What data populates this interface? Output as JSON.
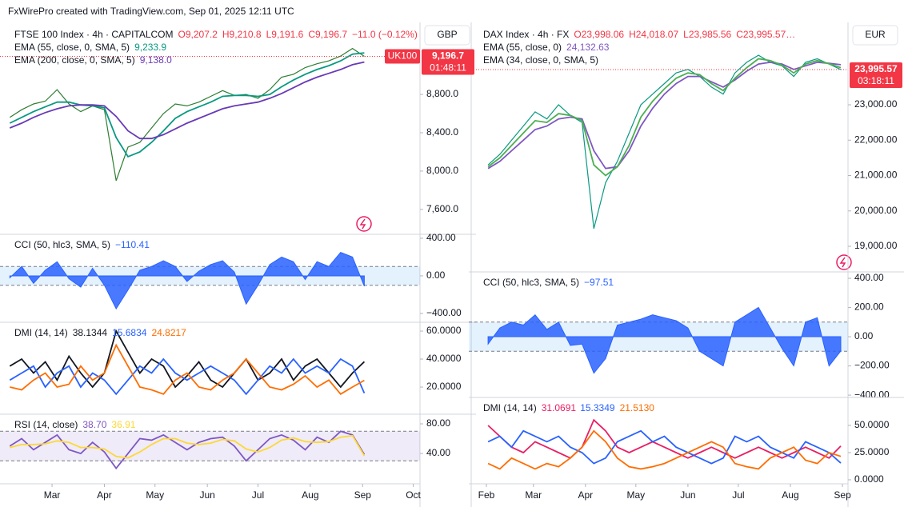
{
  "header": "FxWirePro created with TradingView.com, Sep 01, 2025 12:11 UTC",
  "chart_data": [
    {
      "currency": "GBP",
      "xlim": [
        33.9,
        278
      ],
      "xticks": [
        {
          "value": 60,
          "label": "Mar"
        },
        {
          "value": 91,
          "label": "Apr"
        },
        {
          "value": 121,
          "label": "May"
        },
        {
          "value": 152,
          "label": "Jun"
        },
        {
          "value": 182,
          "label": "Jul"
        },
        {
          "value": 213,
          "label": "Aug"
        },
        {
          "value": 244,
          "label": "Sep"
        },
        {
          "value": 274,
          "label": "Oct"
        }
      ],
      "x": [
        35,
        42,
        49,
        56,
        63,
        70,
        77,
        84,
        91,
        98,
        105,
        112,
        119,
        126,
        133,
        140,
        147,
        154,
        161,
        168,
        175,
        182,
        189,
        196,
        203,
        210,
        217,
        224,
        231,
        238,
        245
      ],
      "panes": [
        {
          "type": "line",
          "title": "FTSE 100 Index · 4h · CAPITALCOM",
          "ohlc": [
            "O9,207.2",
            "H9,210.8",
            "L9,191.6",
            "C9,196.7"
          ],
          "change": "−11.0 (−0.12%)",
          "badge": "UK100",
          "last_label": "9,196.7",
          "countdown": "01:48:11",
          "ylim": [
            7340,
            9535
          ],
          "yticks": [
            {
              "value": 8800,
              "label": "8,800.0"
            },
            {
              "value": 8400,
              "label": "8,400.0"
            },
            {
              "value": 8000,
              "label": "8,000.0"
            },
            {
              "value": 7600,
              "label": "7,600.0"
            }
          ],
          "series": [
            {
              "color": "#2e7d32",
              "values": [
                8560,
                8640,
                8700,
                8730,
                8850,
                8700,
                8620,
                8680,
                8640,
                7900,
                8250,
                8300,
                8450,
                8600,
                8700,
                8680,
                8720,
                8780,
                8840,
                8790,
                8800,
                8760,
                8850,
                8980,
                9010,
                9080,
                9120,
                9150,
                9200,
                9280,
                9196.7
              ]
            },
            {
              "name": "EMA (55, close, 0, SMA, 5)",
              "value_label": "9,233.9",
              "color": "#089981",
              "values": [
                8500,
                8560,
                8620,
                8670,
                8720,
                8720,
                8690,
                8680,
                8660,
                8350,
                8150,
                8200,
                8300,
                8420,
                8550,
                8620,
                8670,
                8720,
                8780,
                8790,
                8790,
                8780,
                8800,
                8880,
                8950,
                9010,
                9060,
                9100,
                9150,
                9220,
                9233.9
              ]
            },
            {
              "name": "EMA (200, close, 0, SMA, 5)",
              "value_label": "9,138.0",
              "color": "#673ab7",
              "values": [
                8450,
                8500,
                8560,
                8610,
                8650,
                8680,
                8690,
                8690,
                8680,
                8570,
                8420,
                8340,
                8340,
                8380,
                8440,
                8500,
                8550,
                8600,
                8650,
                8680,
                8700,
                8720,
                8760,
                8810,
                8870,
                8930,
                8980,
                9020,
                9060,
                9110,
                9138.0
              ]
            }
          ]
        },
        {
          "type": "area",
          "title": "CCI (50, hlc3, SMA, 5)",
          "ylim": [
            -494,
            442
          ],
          "band": [
            -100,
            100
          ],
          "band_color": "#2196f3",
          "yticks": [
            {
              "value": 400,
              "label": "400.00"
            },
            {
              "value": 0,
              "label": "0.00"
            },
            {
              "value": -400,
              "label": "−400.00"
            }
          ],
          "series": [
            {
              "value_label": "−110.41",
              "color": "#2962ff",
              "values": [
                -20,
                100,
                -80,
                60,
                150,
                -30,
                -120,
                80,
                -100,
                -350,
                -150,
                60,
                100,
                160,
                100,
                -60,
                50,
                120,
                160,
                40,
                -300,
                -100,
                120,
                200,
                150,
                -40,
                150,
                100,
                250,
                200,
                -110.41
              ]
            }
          ]
        },
        {
          "type": "line",
          "title": "DMI (14, 14)",
          "ylim": [
            0.6,
            66.3
          ],
          "yticks": [
            {
              "value": 60,
              "label": "60.0000"
            },
            {
              "value": 40,
              "label": "40.0000"
            },
            {
              "value": 20,
              "label": "20.0000"
            }
          ],
          "series": [
            {
              "value_label": "38.1344",
              "color": "#131722",
              "values": [
                35,
                40,
                30,
                38,
                25,
                42,
                30,
                20,
                30,
                60,
                45,
                30,
                40,
                35,
                20,
                28,
                38,
                25,
                20,
                30,
                40,
                25,
                30,
                40,
                25,
                35,
                40,
                30,
                20,
                30,
                38.1344
              ]
            },
            {
              "value_label": "15.6834",
              "color": "#2962ff",
              "values": [
                25,
                30,
                35,
                20,
                30,
                35,
                20,
                30,
                25,
                15,
                25,
                35,
                30,
                40,
                30,
                25,
                30,
                35,
                30,
                25,
                15,
                25,
                35,
                30,
                40,
                30,
                35,
                30,
                40,
                35,
                15.6834
              ]
            },
            {
              "value_label": "24.8217",
              "color": "#ff6d00",
              "values": [
                20,
                18,
                25,
                30,
                20,
                22,
                35,
                25,
                30,
                50,
                35,
                20,
                18,
                15,
                25,
                30,
                20,
                18,
                25,
                30,
                40,
                30,
                20,
                18,
                22,
                28,
                20,
                25,
                15,
                20,
                24.8217
              ]
            }
          ]
        },
        {
          "type": "line",
          "title": "RSI (14, close)",
          "ylim": [
            -1,
            93
          ],
          "band": [
            30,
            70
          ],
          "band_color": "#7e57c2",
          "yticks": [
            {
              "value": 80,
              "label": "80.00"
            },
            {
              "value": 40,
              "label": "40.00"
            }
          ],
          "series": [
            {
              "value_label": "38.70",
              "color": "#7e57c2",
              "values": [
                50,
                60,
                45,
                55,
                65,
                45,
                40,
                55,
                42,
                20,
                40,
                60,
                58,
                65,
                55,
                45,
                55,
                60,
                62,
                50,
                30,
                45,
                60,
                65,
                58,
                45,
                62,
                55,
                70,
                65,
                38.7
              ]
            },
            {
              "value_label": "36.91",
              "color": "#fdd835",
              "values": [
                48,
                52,
                52,
                53,
                57,
                55,
                48,
                48,
                46,
                36,
                34,
                42,
                52,
                60,
                60,
                54,
                52,
                54,
                59,
                57,
                46,
                42,
                48,
                58,
                61,
                56,
                55,
                56,
                62,
                64,
                36.91
              ]
            }
          ]
        }
      ]
    },
    {
      "currency": "EUR",
      "xlim": [
        26.3,
        247.3
      ],
      "xticks": [
        {
          "value": 32,
          "label": "Feb"
        },
        {
          "value": 60,
          "label": "Mar"
        },
        {
          "value": 91,
          "label": "Apr"
        },
        {
          "value": 121,
          "label": "May"
        },
        {
          "value": 152,
          "label": "Jun"
        },
        {
          "value": 182,
          "label": "Jul"
        },
        {
          "value": 213,
          "label": "Aug"
        },
        {
          "value": 244,
          "label": "Sep"
        }
      ],
      "x": [
        33,
        40,
        47,
        54,
        61,
        68,
        75,
        82,
        89,
        96,
        103,
        110,
        117,
        124,
        131,
        138,
        145,
        152,
        159,
        166,
        173,
        180,
        187,
        194,
        201,
        208,
        215,
        222,
        229,
        236,
        243
      ],
      "panes": [
        {
          "type": "line",
          "title": "DAX Index · 4h · FX",
          "ohlc": [
            "O23,998.06",
            "H24,018.07",
            "L23,985.56",
            "C23,995.57…"
          ],
          "last_label": "23,995.57",
          "countdown": "03:18:11",
          "ylim": [
            18277,
            25283
          ],
          "yticks": [
            {
              "value": 23000,
              "label": "23,000.00"
            },
            {
              "value": 22000,
              "label": "22,000.00"
            },
            {
              "value": 21000,
              "label": "21,000.00"
            },
            {
              "value": 20000,
              "label": "20,000.00"
            },
            {
              "value": 19000,
              "label": "19,000.00"
            }
          ],
          "series": [
            {
              "color": "#089981",
              "values": [
                21300,
                21600,
                22000,
                22400,
                22800,
                22600,
                23000,
                22700,
                22500,
                19500,
                20800,
                21400,
                22200,
                23000,
                23300,
                23600,
                23900,
                24000,
                23800,
                23500,
                23300,
                23900,
                24200,
                24400,
                24200,
                24100,
                23800,
                24200,
                24300,
                24150,
                23995.57
              ]
            },
            {
              "name": "EMA (55, close, 0)",
              "value_label": "24,132.63",
              "color": "#7e57c2",
              "values": [
                21200,
                21400,
                21700,
                22000,
                22300,
                22400,
                22600,
                22650,
                22600,
                21700,
                21200,
                21250,
                21700,
                22400,
                22900,
                23300,
                23600,
                23800,
                23800,
                23650,
                23500,
                23700,
                23950,
                24150,
                24200,
                24150,
                24000,
                24100,
                24200,
                24170,
                24132.63
              ]
            },
            {
              "name": "EMA (34, close, 0, SMA, 5)",
              "color": "#4caf50",
              "values": [
                21250,
                21500,
                21850,
                22200,
                22550,
                22500,
                22750,
                22700,
                22550,
                21300,
                21000,
                21250,
                21850,
                22650,
                23100,
                23450,
                23750,
                23900,
                23850,
                23600,
                23400,
                23750,
                24050,
                24300,
                24250,
                24120,
                23900,
                24150,
                24250,
                24160,
                24050
              ]
            }
          ]
        },
        {
          "type": "area",
          "title": "CCI (50, hlc3, SMA, 5)",
          "ylim": [
            -416,
            444
          ],
          "band": [
            -100,
            100
          ],
          "band_color": "#2196f3",
          "yticks": [
            {
              "value": 400,
              "label": "400.00"
            },
            {
              "value": 200,
              "label": "200.00"
            },
            {
              "value": 0,
              "label": "0.00"
            },
            {
              "value": -200,
              "label": "−200.00"
            },
            {
              "value": -400,
              "label": "−400.00"
            }
          ],
          "series": [
            {
              "value_label": "−97.51",
              "color": "#2962ff",
              "values": [
                -50,
                60,
                100,
                80,
                150,
                50,
                100,
                -60,
                -50,
                -250,
                -150,
                80,
                100,
                120,
                150,
                130,
                110,
                60,
                -100,
                -150,
                -200,
                100,
                150,
                200,
                60,
                -80,
                -200,
                100,
                130,
                -200,
                -97.51
              ]
            }
          ]
        },
        {
          "type": "line",
          "title": "DMI (14, 14)",
          "ylim": [
            -3.7,
            75.7
          ],
          "yticks": [
            {
              "value": 50,
              "label": "50.0000"
            },
            {
              "value": 25,
              "label": "25.0000"
            },
            {
              "value": 0,
              "label": "0.0000"
            }
          ],
          "series": [
            {
              "value_label": "31.0691",
              "color": "#e91e63",
              "values": [
                50,
                40,
                30,
                25,
                35,
                30,
                25,
                20,
                30,
                55,
                45,
                30,
                25,
                30,
                35,
                30,
                25,
                20,
                25,
                30,
                25,
                20,
                25,
                30,
                25,
                20,
                25,
                30,
                25,
                20,
                31.0691
              ]
            },
            {
              "value_label": "15.3349",
              "color": "#2962ff",
              "values": [
                35,
                40,
                30,
                45,
                40,
                35,
                40,
                30,
                25,
                15,
                20,
                35,
                40,
                45,
                35,
                40,
                30,
                25,
                20,
                15,
                20,
                40,
                35,
                40,
                30,
                25,
                20,
                35,
                30,
                25,
                15.3349
              ]
            },
            {
              "value_label": "21.5130",
              "color": "#ff6d00",
              "values": [
                15,
                10,
                20,
                15,
                10,
                15,
                12,
                20,
                30,
                45,
                35,
                20,
                12,
                10,
                12,
                15,
                20,
                25,
                30,
                35,
                30,
                15,
                12,
                10,
                20,
                25,
                30,
                18,
                15,
                25,
                21.513
              ]
            }
          ]
        }
      ]
    }
  ]
}
